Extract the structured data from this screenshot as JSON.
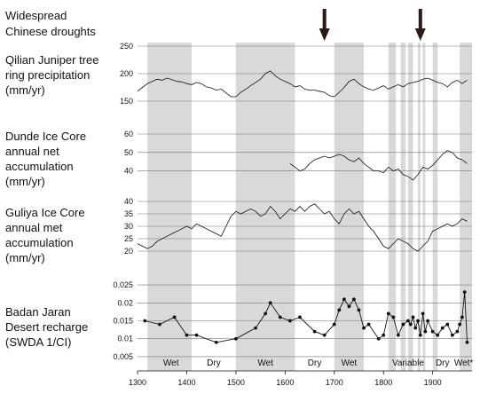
{
  "chart_data": [
    {
      "type": "table",
      "title": "Widespread Chinese droughts",
      "title_lines": [
        "Widespread",
        "Chinese droughts"
      ],
      "arrows_x": [
        1680,
        1875
      ]
    },
    {
      "type": "line",
      "title": "Qilian Juniper tree ring precipitation (mm/yr)",
      "title_lines": [
        "Qilian Juniper tree",
        "ring precipitation",
        "(mm/yr)"
      ],
      "yticks": [
        150,
        200,
        250
      ],
      "ylim": [
        150,
        250
      ],
      "x": [
        1300,
        1310,
        1320,
        1330,
        1340,
        1350,
        1360,
        1370,
        1380,
        1390,
        1400,
        1410,
        1420,
        1430,
        1440,
        1450,
        1460,
        1470,
        1480,
        1490,
        1500,
        1510,
        1520,
        1530,
        1540,
        1550,
        1560,
        1570,
        1580,
        1590,
        1600,
        1610,
        1620,
        1630,
        1640,
        1650,
        1660,
        1670,
        1680,
        1690,
        1700,
        1710,
        1720,
        1730,
        1740,
        1750,
        1760,
        1770,
        1780,
        1790,
        1800,
        1810,
        1820,
        1830,
        1840,
        1850,
        1860,
        1870,
        1880,
        1890,
        1900,
        1910,
        1920,
        1930,
        1940,
        1950,
        1960,
        1970
      ],
      "values": [
        168,
        175,
        182,
        186,
        190,
        188,
        192,
        189,
        186,
        185,
        182,
        180,
        184,
        182,
        176,
        174,
        170,
        172,
        165,
        158,
        158,
        166,
        172,
        178,
        184,
        190,
        200,
        205,
        196,
        190,
        186,
        182,
        176,
        178,
        172,
        170,
        170,
        168,
        166,
        160,
        158,
        166,
        175,
        186,
        190,
        182,
        176,
        172,
        170,
        174,
        178,
        172,
        176,
        180,
        176,
        182,
        184,
        186,
        190,
        192,
        188,
        184,
        182,
        176,
        184,
        188,
        182,
        188
      ]
    },
    {
      "type": "line",
      "title": "Dunde Ice Core annual net accumulation (mm/yr)",
      "title_lines": [
        "Dunde Ice Core",
        "annual net",
        "accumulation",
        "(mm/yr)"
      ],
      "yticks": [
        40,
        50,
        60
      ],
      "ylim": [
        35,
        60
      ],
      "x": [
        1610,
        1620,
        1630,
        1640,
        1650,
        1660,
        1670,
        1680,
        1690,
        1700,
        1710,
        1720,
        1730,
        1740,
        1750,
        1760,
        1770,
        1780,
        1790,
        1800,
        1810,
        1820,
        1830,
        1840,
        1850,
        1860,
        1870,
        1880,
        1890,
        1900,
        1910,
        1920,
        1930,
        1940,
        1950,
        1960,
        1970
      ],
      "values": [
        44,
        42,
        40,
        41,
        44,
        46,
        47,
        48,
        47,
        48,
        49,
        48,
        46,
        45,
        47,
        44,
        42,
        40,
        40,
        39,
        42,
        40,
        41,
        38,
        37,
        35,
        38,
        42,
        41,
        43,
        46,
        49,
        51,
        50,
        47,
        46,
        44
      ]
    },
    {
      "type": "line",
      "title": "Guliya Ice Core annual met accumulation (mm/yr)",
      "title_lines": [
        "Guliya Ice Core",
        "annual met",
        "accumulation",
        "(mm/yr)"
      ],
      "yticks": [
        20,
        25,
        30,
        35,
        40
      ],
      "ylim": [
        20,
        40
      ],
      "x": [
        1300,
        1310,
        1320,
        1330,
        1340,
        1350,
        1360,
        1370,
        1380,
        1390,
        1400,
        1410,
        1420,
        1430,
        1440,
        1450,
        1460,
        1470,
        1480,
        1490,
        1500,
        1510,
        1520,
        1530,
        1540,
        1550,
        1560,
        1570,
        1580,
        1590,
        1600,
        1610,
        1620,
        1630,
        1640,
        1650,
        1660,
        1670,
        1680,
        1690,
        1700,
        1710,
        1720,
        1730,
        1740,
        1750,
        1760,
        1770,
        1780,
        1790,
        1800,
        1810,
        1820,
        1830,
        1840,
        1850,
        1860,
        1870,
        1880,
        1890,
        1900,
        1910,
        1920,
        1930,
        1940,
        1950,
        1960,
        1970
      ],
      "values": [
        23,
        22,
        21,
        22,
        24,
        25,
        26,
        27,
        28,
        29,
        30,
        29,
        31,
        30,
        29,
        28,
        27,
        26,
        30,
        34,
        36,
        35,
        36,
        37,
        36,
        34,
        35,
        38,
        36,
        33,
        35,
        37,
        36,
        38,
        36,
        38,
        39,
        37,
        35,
        36,
        33,
        31,
        35,
        37,
        35,
        36,
        33,
        30,
        28,
        25,
        22,
        21,
        23,
        25,
        24,
        23,
        21,
        20,
        22,
        24,
        28,
        29,
        30,
        31,
        30,
        31,
        33,
        32
      ]
    },
    {
      "type": "scatter",
      "title": "Badan Jaran Desert recharge (SWDA 1/CI)",
      "title_lines": [
        "Badan Jaran",
        "Desert recharge",
        "(SWDA 1/CI)"
      ],
      "yticks": [
        0.005,
        0.01,
        0.015,
        0.02,
        0.025
      ],
      "ylim": [
        0.004,
        0.026
      ],
      "x": [
        1315,
        1345,
        1375,
        1400,
        1420,
        1460,
        1500,
        1540,
        1560,
        1570,
        1590,
        1610,
        1630,
        1660,
        1680,
        1700,
        1710,
        1720,
        1730,
        1740,
        1750,
        1760,
        1770,
        1790,
        1800,
        1810,
        1820,
        1830,
        1840,
        1850,
        1855,
        1860,
        1865,
        1870,
        1875,
        1880,
        1885,
        1890,
        1900,
        1910,
        1920,
        1930,
        1940,
        1950,
        1955,
        1960,
        1965,
        1970
      ],
      "values": [
        0.015,
        0.014,
        0.016,
        0.011,
        0.011,
        0.009,
        0.01,
        0.013,
        0.017,
        0.02,
        0.016,
        0.015,
        0.016,
        0.012,
        0.011,
        0.014,
        0.018,
        0.021,
        0.019,
        0.021,
        0.018,
        0.013,
        0.014,
        0.01,
        0.011,
        0.017,
        0.016,
        0.011,
        0.014,
        0.015,
        0.014,
        0.016,
        0.013,
        0.015,
        0.011,
        0.017,
        0.012,
        0.015,
        0.012,
        0.011,
        0.013,
        0.014,
        0.011,
        0.012,
        0.014,
        0.016,
        0.023,
        0.009
      ]
    }
  ],
  "x_axis": {
    "range": [
      1300,
      1980
    ],
    "tick_labels": [
      "1300",
      "1400",
      "1500",
      "1600",
      "1700",
      "1800",
      "1900"
    ]
  },
  "wet_bands": [
    [
      1320,
      1410
    ],
    [
      1500,
      1620
    ],
    [
      1700,
      1760
    ],
    [
      1810,
      1825
    ],
    [
      1835,
      1845
    ],
    [
      1850,
      1860
    ],
    [
      1870,
      1875
    ],
    [
      1880,
      1885
    ],
    [
      1900,
      1910
    ],
    [
      1955,
      1980
    ]
  ],
  "era_labels": [
    {
      "text": "Wet",
      "x": 1368
    },
    {
      "text": "Dry",
      "x": 1455
    },
    {
      "text": "Wet",
      "x": 1560
    },
    {
      "text": "Dry",
      "x": 1660
    },
    {
      "text": "Wet",
      "x": 1730
    },
    {
      "text": "Variable",
      "x": 1850
    },
    {
      "text": "Dry",
      "x": 1920
    },
    {
      "text": "Wet*",
      "x": 1963
    }
  ],
  "colors": {
    "band": "#d9d9d9",
    "line": "#111111",
    "grid": "#777777"
  }
}
